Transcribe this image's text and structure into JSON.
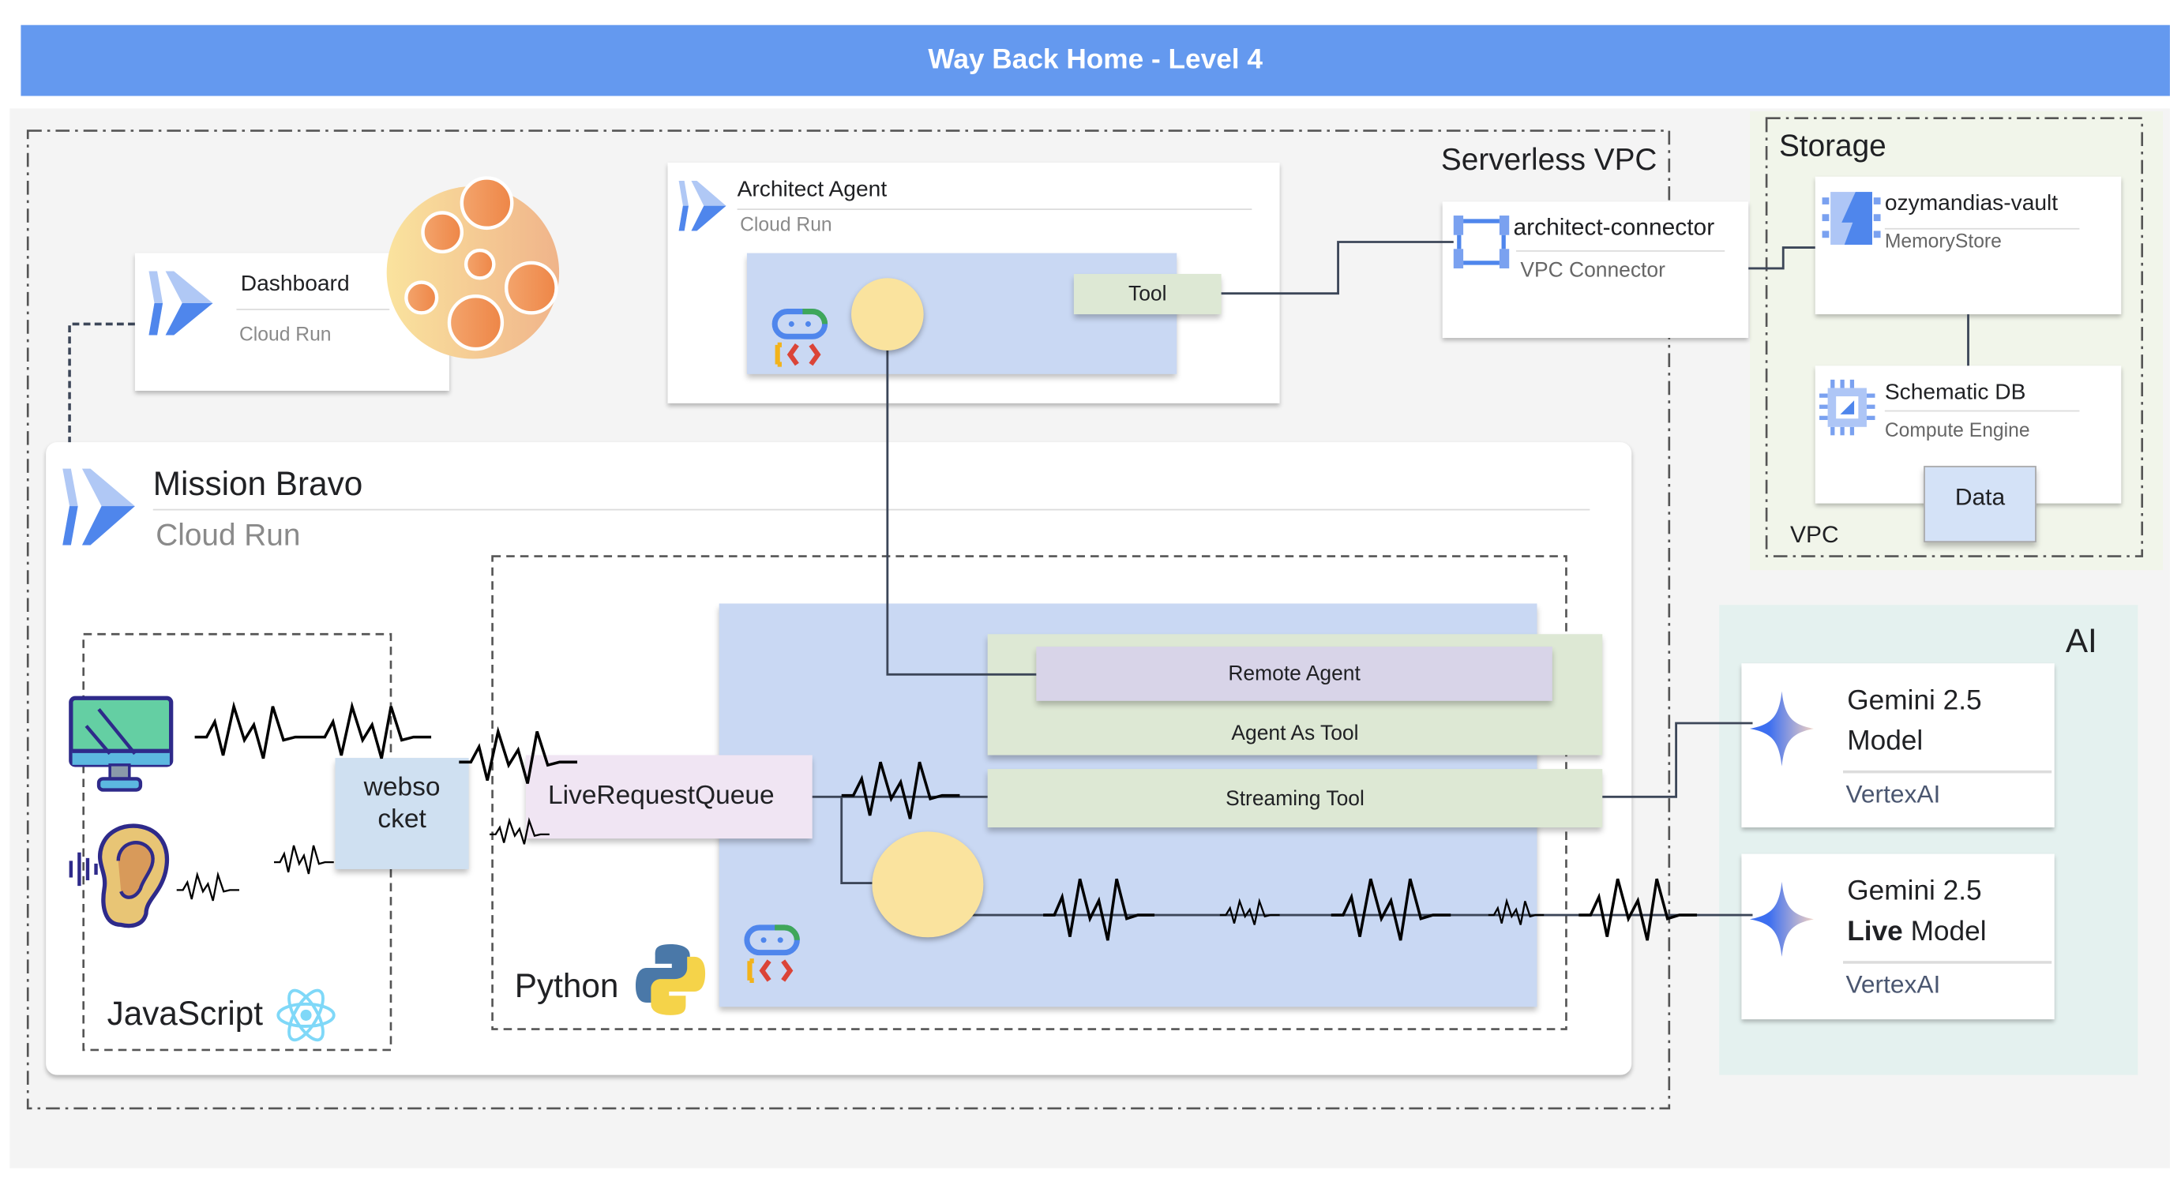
{
  "title": "Way Back Home - Level 4",
  "colors": {
    "title_bar": "#6499ef",
    "agent_box": "#c9d8f3",
    "tool_box": "#dde8d4",
    "remote_agent": "#d8d4e8",
    "queue": "#f0e5f3",
    "websocket": "#cfe0f1",
    "storage_bg": "#f1f5ea",
    "ai_bg": "#e4f1ef",
    "agent_circle": "#fae39e"
  },
  "serverless_vpc": {
    "label": "Serverless VPC"
  },
  "dashboard": {
    "title": "Dashboard",
    "subtitle": "Cloud Run",
    "icon": "cloud-run-icon",
    "image": "moon-planet"
  },
  "architect": {
    "title": "Architect Agent",
    "subtitle": "Cloud Run",
    "tool": "Tool",
    "icon": "adk-icon"
  },
  "connector": {
    "title": "architect-connector",
    "subtitle": "VPC Connector",
    "icon": "vpc-connector-icon"
  },
  "storage": {
    "label": "Storage",
    "vpc_label": "VPC",
    "vault": {
      "title": "ozymandias-vault",
      "subtitle": "MemoryStore",
      "icon": "memorystore-icon"
    },
    "db": {
      "title": "Schematic DB",
      "subtitle": "Compute Engine",
      "icon": "compute-engine-icon",
      "note": "Data"
    }
  },
  "mission": {
    "title": "Mission Bravo",
    "subtitle": "Cloud Run",
    "javascript": {
      "label": "JavaScript",
      "icon": "react-icon",
      "websocket_line1": "webso",
      "websocket_line2": "cket"
    },
    "python": {
      "label": "Python",
      "icon": "python-icon",
      "queue": "LiveRequestQueue",
      "remote_agent": "Remote Agent",
      "agent_as_tool": "Agent As Tool",
      "streaming_tool": "Streaming Tool"
    }
  },
  "ai": {
    "label": "AI",
    "models": [
      {
        "line1": "Gemini 2.5",
        "line2_bold": "",
        "line2": "Model",
        "provider": "VertexAI"
      },
      {
        "line1": "Gemini 2.5",
        "line2_bold": "Live",
        "line2": " Model",
        "provider": "VertexAI"
      }
    ]
  }
}
